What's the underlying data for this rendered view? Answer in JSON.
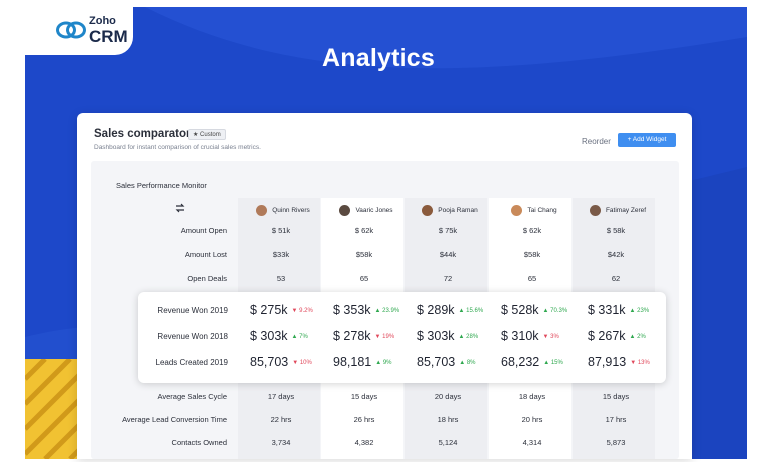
{
  "logo": {
    "brand_top": "Zoho",
    "brand_bottom": "CRM"
  },
  "hero_title": "Analytics",
  "card": {
    "title": "Sales comparator",
    "badge": "Custom",
    "subtitle": "Dashboard for instant comparison of crucial sales metrics.",
    "reorder": "Reorder",
    "add_widget": "+ Add Widget"
  },
  "panel": {
    "title": "Sales Performance Monitor",
    "people": [
      {
        "name": "Quinn Rivers",
        "avatar_color": "#b07a5a"
      },
      {
        "name": "Vaaric Jones",
        "avatar_color": "#5a4a40"
      },
      {
        "name": "Pooja Raman",
        "avatar_color": "#8a5a3c"
      },
      {
        "name": "Tai Chang",
        "avatar_color": "#c98a5a"
      },
      {
        "name": "Fatimay Zeref",
        "avatar_color": "#7a5a48"
      }
    ],
    "top_rows": [
      {
        "label": "Amount Open",
        "values": [
          "$ 51k",
          "$ 62k",
          "$ 75k",
          "$ 62k",
          "$ 58k"
        ]
      },
      {
        "label": "Amount Lost",
        "values": [
          "$33k",
          "$58k",
          "$44k",
          "$58k",
          "$42k"
        ]
      },
      {
        "label": "Open Deals",
        "values": [
          "53",
          "65",
          "72",
          "65",
          "62"
        ]
      }
    ],
    "highlight_rows": [
      {
        "label": "Revenue Won 2019",
        "values": [
          {
            "v": "$ 275k",
            "d": "down",
            "p": "9.2%"
          },
          {
            "v": "$ 353k",
            "d": "up",
            "p": "23.9%"
          },
          {
            "v": "$ 289k",
            "d": "up",
            "p": "15.6%"
          },
          {
            "v": "$ 528k",
            "d": "up",
            "p": "70.3%"
          },
          {
            "v": "$ 331k",
            "d": "up",
            "p": "23%"
          }
        ]
      },
      {
        "label": "Revenue Won 2018",
        "values": [
          {
            "v": "$ 303k",
            "d": "up",
            "p": "7%"
          },
          {
            "v": "$ 278k",
            "d": "down",
            "p": "19%"
          },
          {
            "v": "$ 303k",
            "d": "up",
            "p": "28%"
          },
          {
            "v": "$ 310k",
            "d": "down",
            "p": "3%"
          },
          {
            "v": "$ 267k",
            "d": "up",
            "p": "2%"
          }
        ]
      },
      {
        "label": "Leads Created 2019",
        "values": [
          {
            "v": "85,703",
            "d": "down",
            "p": "10%"
          },
          {
            "v": "98,181",
            "d": "up",
            "p": "9%"
          },
          {
            "v": "85,703",
            "d": "up",
            "p": "8%"
          },
          {
            "v": "68,232",
            "d": "up",
            "p": "15%"
          },
          {
            "v": "87,913",
            "d": "down",
            "p": "13%"
          }
        ]
      }
    ],
    "bottom_rows": [
      {
        "label": "Average Sales Cycle",
        "values": [
          "17 days",
          "15 days",
          "20 days",
          "18 days",
          "15 days"
        ]
      },
      {
        "label": "Average Lead Conversion Time",
        "values": [
          "22 hrs",
          "26 hrs",
          "18 hrs",
          "20 hrs",
          "17 hrs"
        ]
      },
      {
        "label": "Contacts Owned",
        "values": [
          "3,734",
          "4,382",
          "5,124",
          "4,314",
          "5,873"
        ]
      }
    ]
  },
  "colors": {
    "accent": "#3f8ef0",
    "banner": "#1d48c9",
    "up": "#2fa84f",
    "down": "#e0485b"
  },
  "icons": {
    "swap": "swap-icon",
    "logo": "zoho-logo-icon"
  }
}
